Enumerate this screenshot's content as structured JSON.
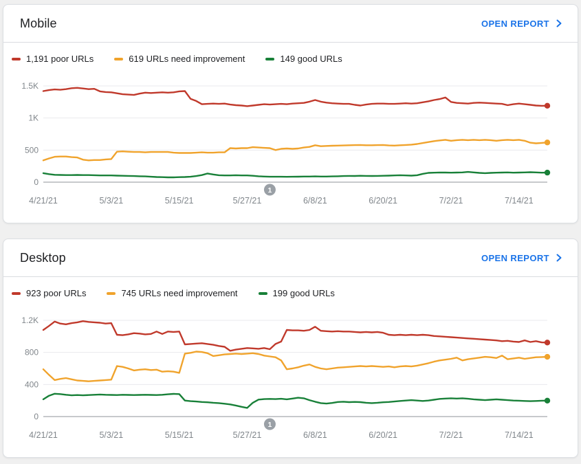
{
  "open_report_label": "OPEN REPORT",
  "annotation_badge_color": "#9aa0a6",
  "axis_label_color": "#80868b",
  "gridline_color": "#e9eaed",
  "zero_line_color": "#8f9398",
  "link_color": "#1a73e8",
  "chart_data": [
    {
      "id": "mobile",
      "type": "line",
      "title": "Mobile",
      "xlabel": "",
      "ylabel": "",
      "ylim": [
        0,
        1500
      ],
      "y_max": 1500,
      "grid": "horizontal-only",
      "legend_position": "top",
      "date_range": [
        "4/21/21",
        "7/19/21"
      ],
      "interval": "daily",
      "days": 90,
      "y_ticks": [
        {
          "value": 0,
          "label": "0"
        },
        {
          "value": 500,
          "label": "500"
        },
        {
          "value": 1000,
          "label": "1K"
        },
        {
          "value": 1500,
          "label": "1.5K"
        }
      ],
      "x_tick_labels": [
        "4/21/21",
        "5/3/21",
        "5/15/21",
        "5/27/21",
        "6/8/21",
        "6/20/21",
        "7/2/21",
        "7/14/21"
      ],
      "x_tick_day_indices": [
        0,
        12,
        24,
        36,
        48,
        60,
        72,
        84
      ],
      "annotation": {
        "label": "1",
        "day_index": 40,
        "date": "5/31/21"
      },
      "series": [
        {
          "name": "Poor URLs",
          "legend_label": "1,191 poor URLs",
          "current_value": 1191,
          "color": "#c0392b",
          "values": [
            1420,
            1435,
            1445,
            1440,
            1450,
            1465,
            1470,
            1460,
            1450,
            1455,
            1415,
            1405,
            1400,
            1385,
            1370,
            1365,
            1360,
            1380,
            1395,
            1390,
            1395,
            1400,
            1395,
            1400,
            1415,
            1420,
            1300,
            1265,
            1215,
            1220,
            1225,
            1220,
            1225,
            1210,
            1200,
            1195,
            1185,
            1195,
            1205,
            1215,
            1210,
            1215,
            1220,
            1215,
            1225,
            1230,
            1235,
            1255,
            1280,
            1255,
            1240,
            1230,
            1225,
            1220,
            1220,
            1205,
            1195,
            1210,
            1220,
            1225,
            1225,
            1220,
            1220,
            1225,
            1230,
            1225,
            1230,
            1245,
            1260,
            1280,
            1295,
            1320,
            1250,
            1235,
            1230,
            1225,
            1235,
            1240,
            1235,
            1230,
            1225,
            1220,
            1200,
            1215,
            1225,
            1215,
            1205,
            1195,
            1190,
            1191
          ]
        },
        {
          "name": "URLs need improvement",
          "legend_label": "619 URLs need improvement",
          "current_value": 619,
          "color": "#f0a32c",
          "values": [
            340,
            370,
            395,
            400,
            400,
            390,
            385,
            350,
            340,
            345,
            345,
            355,
            360,
            475,
            480,
            475,
            470,
            470,
            465,
            470,
            470,
            470,
            470,
            460,
            455,
            455,
            455,
            460,
            465,
            460,
            460,
            465,
            465,
            530,
            525,
            530,
            530,
            545,
            540,
            535,
            530,
            500,
            520,
            525,
            520,
            525,
            540,
            550,
            575,
            560,
            565,
            568,
            570,
            572,
            575,
            578,
            580,
            575,
            575,
            578,
            580,
            572,
            570,
            575,
            580,
            585,
            595,
            610,
            625,
            640,
            650,
            660,
            645,
            655,
            660,
            655,
            660,
            655,
            660,
            655,
            645,
            655,
            660,
            655,
            660,
            645,
            615,
            605,
            612,
            619
          ]
        },
        {
          "name": "Good URLs",
          "legend_label": "149 good URLs",
          "current_value": 149,
          "color": "#188038",
          "values": [
            140,
            125,
            115,
            112,
            110,
            110,
            112,
            110,
            110,
            108,
            105,
            105,
            105,
            102,
            100,
            98,
            95,
            92,
            90,
            85,
            80,
            78,
            75,
            75,
            78,
            80,
            85,
            95,
            110,
            135,
            120,
            108,
            105,
            105,
            108,
            105,
            105,
            100,
            92,
            88,
            85,
            85,
            85,
            84,
            85,
            86,
            88,
            88,
            90,
            88,
            88,
            90,
            92,
            95,
            98,
            96,
            100,
            98,
            96,
            98,
            100,
            102,
            105,
            108,
            105,
            102,
            108,
            130,
            145,
            148,
            150,
            150,
            148,
            150,
            152,
            160,
            152,
            145,
            140,
            145,
            148,
            150,
            152,
            148,
            150,
            152,
            155,
            152,
            148,
            149
          ]
        }
      ]
    },
    {
      "id": "desktop",
      "type": "line",
      "title": "Desktop",
      "xlabel": "",
      "ylabel": "",
      "ylim": [
        0,
        1200
      ],
      "y_max": 1200,
      "grid": "horizontal-only",
      "legend_position": "top",
      "date_range": [
        "4/21/21",
        "7/19/21"
      ],
      "interval": "daily",
      "days": 90,
      "y_ticks": [
        {
          "value": 0,
          "label": "0"
        },
        {
          "value": 400,
          "label": "400"
        },
        {
          "value": 800,
          "label": "800"
        },
        {
          "value": 1200,
          "label": "1.2K"
        }
      ],
      "x_tick_labels": [
        "4/21/21",
        "5/3/21",
        "5/15/21",
        "5/27/21",
        "6/8/21",
        "6/20/21",
        "7/2/21",
        "7/14/21"
      ],
      "x_tick_day_indices": [
        0,
        12,
        24,
        36,
        48,
        60,
        72,
        84
      ],
      "annotation": {
        "label": "1",
        "day_index": 40,
        "date": "5/31/21"
      },
      "series": [
        {
          "name": "Poor URLs",
          "legend_label": "923 poor URLs",
          "current_value": 923,
          "color": "#c0392b",
          "values": [
            1080,
            1130,
            1185,
            1160,
            1150,
            1165,
            1175,
            1190,
            1180,
            1175,
            1170,
            1160,
            1165,
            1020,
            1015,
            1025,
            1040,
            1035,
            1025,
            1030,
            1060,
            1030,
            1060,
            1055,
            1060,
            900,
            905,
            910,
            915,
            905,
            895,
            880,
            870,
            820,
            835,
            845,
            855,
            850,
            845,
            855,
            840,
            905,
            935,
            1080,
            1075,
            1075,
            1070,
            1080,
            1120,
            1070,
            1065,
            1060,
            1065,
            1060,
            1060,
            1055,
            1050,
            1055,
            1050,
            1055,
            1045,
            1020,
            1015,
            1020,
            1015,
            1020,
            1015,
            1020,
            1015,
            1005,
            1000,
            995,
            990,
            985,
            980,
            975,
            970,
            965,
            960,
            955,
            950,
            940,
            945,
            935,
            930,
            950,
            930,
            940,
            925,
            923
          ]
        },
        {
          "name": "URLs need improvement",
          "legend_label": "745 URLs need improvement",
          "current_value": 745,
          "color": "#f0a32c",
          "values": [
            590,
            520,
            455,
            470,
            480,
            465,
            450,
            445,
            440,
            445,
            450,
            455,
            460,
            630,
            620,
            600,
            575,
            585,
            590,
            580,
            585,
            560,
            565,
            560,
            545,
            785,
            795,
            810,
            805,
            790,
            755,
            765,
            775,
            780,
            785,
            780,
            785,
            790,
            780,
            760,
            750,
            740,
            700,
            590,
            600,
            615,
            635,
            650,
            620,
            600,
            590,
            600,
            610,
            615,
            620,
            625,
            630,
            625,
            630,
            625,
            620,
            625,
            615,
            625,
            630,
            625,
            635,
            650,
            665,
            685,
            700,
            710,
            720,
            735,
            700,
            715,
            725,
            735,
            745,
            740,
            730,
            760,
            715,
            725,
            735,
            720,
            730,
            740,
            742,
            745
          ]
        },
        {
          "name": "Good URLs",
          "legend_label": "199 good URLs",
          "current_value": 199,
          "color": "#188038",
          "values": [
            215,
            260,
            285,
            280,
            272,
            265,
            268,
            265,
            268,
            272,
            275,
            272,
            270,
            268,
            272,
            270,
            268,
            270,
            272,
            270,
            268,
            272,
            278,
            283,
            280,
            200,
            192,
            188,
            182,
            178,
            172,
            168,
            160,
            152,
            138,
            122,
            108,
            172,
            212,
            218,
            220,
            218,
            222,
            215,
            225,
            235,
            228,
            205,
            185,
            168,
            162,
            170,
            182,
            185,
            180,
            183,
            180,
            172,
            168,
            172,
            178,
            182,
            188,
            195,
            200,
            205,
            200,
            195,
            200,
            210,
            220,
            225,
            228,
            225,
            228,
            222,
            215,
            210,
            205,
            210,
            215,
            210,
            205,
            200,
            198,
            195,
            192,
            195,
            198,
            199
          ]
        }
      ]
    }
  ]
}
